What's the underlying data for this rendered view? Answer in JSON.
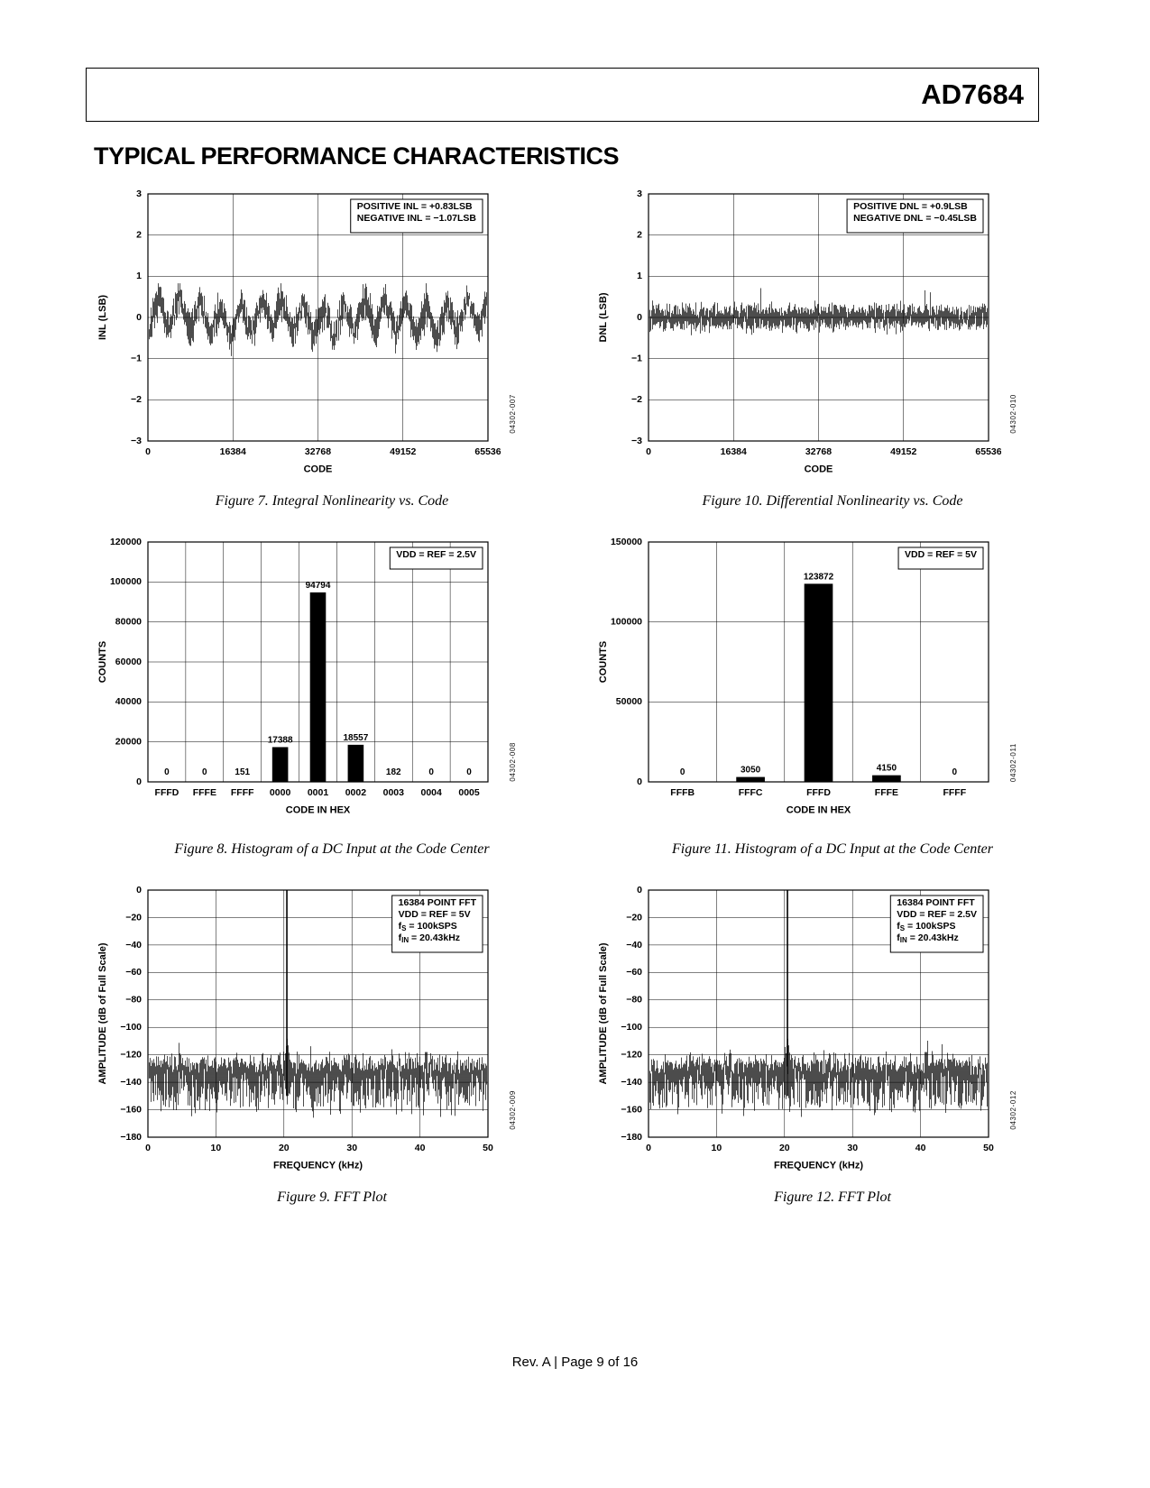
{
  "header": {
    "part_number": "AD7684"
  },
  "section_title": "TYPICAL PERFORMANCE CHARACTERISTICS",
  "footer": {
    "text": "Rev. A | Page 9 of 16"
  },
  "figures": [
    {
      "caption": "Figure 7. Integral Nonlinearity vs. Code",
      "side_label": "04302-007"
    },
    {
      "caption": "Figure 10. Differential Nonlinearity vs. Code",
      "side_label": "04302-010"
    },
    {
      "caption": "Figure 8. Histogram of a DC Input at the Code Center",
      "side_label": "04302-008"
    },
    {
      "caption": "Figure 11. Histogram of a DC Input at the Code Center",
      "side_label": "04302-011"
    },
    {
      "caption": "Figure 9. FFT Plot",
      "side_label": "04302-009"
    },
    {
      "caption": "Figure 12. FFT Plot",
      "side_label": "04302-012"
    }
  ],
  "chart_data": [
    {
      "type": "line",
      "subtype": "inl",
      "xlabel": "CODE",
      "ylabel": "INL (LSB)",
      "xlim": [
        0,
        65536
      ],
      "ylim": [
        -3,
        3
      ],
      "xticks": [
        0,
        16384,
        32768,
        49152,
        65536
      ],
      "yticks": [
        -3,
        -2,
        -1,
        0,
        1,
        2,
        3
      ],
      "annotation": [
        "POSITIVE INL = +0.83LSB",
        "NEGATIVE INL = −1.07LSB"
      ],
      "summary": {
        "positive_inl_lsb": 0.83,
        "negative_inl_lsb": -1.07
      },
      "grid": true,
      "seed": 7
    },
    {
      "type": "line",
      "subtype": "dnl",
      "xlabel": "CODE",
      "ylabel": "DNL (LSB)",
      "xlim": [
        0,
        65536
      ],
      "ylim": [
        -3,
        3
      ],
      "xticks": [
        0,
        16384,
        32768,
        49152,
        65536
      ],
      "yticks": [
        -3,
        -2,
        -1,
        0,
        1,
        2,
        3
      ],
      "annotation": [
        "POSITIVE DNL = +0.9LSB",
        "NEGATIVE DNL = −0.45LSB"
      ],
      "summary": {
        "positive_dnl_lsb": 0.9,
        "negative_dnl_lsb": -0.45
      },
      "grid": true,
      "seed": 10
    },
    {
      "type": "bar",
      "xlabel": "CODE IN HEX",
      "ylabel": "COUNTS",
      "categories": [
        "FFFD",
        "FFFE",
        "FFFF",
        "0000",
        "0001",
        "0002",
        "0003",
        "0004",
        "0005"
      ],
      "values": [
        0,
        0,
        151,
        17388,
        94794,
        18557,
        182,
        0,
        0
      ],
      "ylim": [
        0,
        120000
      ],
      "yticks": [
        0,
        20000,
        40000,
        60000,
        80000,
        100000,
        120000
      ],
      "annotation": [
        "VDD = REF = 2.5V"
      ],
      "grid": true
    },
    {
      "type": "bar",
      "xlabel": "CODE IN HEX",
      "ylabel": "COUNTS",
      "categories": [
        "FFFB",
        "FFFC",
        "FFFD",
        "FFFE",
        "FFFF"
      ],
      "values": [
        0,
        3050,
        123872,
        4150,
        0
      ],
      "ylim": [
        0,
        150000
      ],
      "yticks": [
        0,
        50000,
        100000,
        150000
      ],
      "annotation": [
        "VDD = REF = 5V"
      ],
      "grid": true
    },
    {
      "type": "line",
      "subtype": "fft",
      "xlabel": "FREQUENCY (kHz)",
      "ylabel": "AMPLITUDE (dB of Full Scale)",
      "xlim": [
        0,
        50
      ],
      "ylim": [
        -180,
        0
      ],
      "xticks": [
        0,
        10,
        20,
        30,
        40,
        50
      ],
      "yticks": [
        0,
        -20,
        -40,
        -60,
        -80,
        -100,
        -120,
        -140,
        -160,
        -180
      ],
      "annotation": [
        "16384 POINT FFT",
        "VDD = REF = 5V",
        "f_S_ = 100kSPS",
        "f_IN_ = 20.43kHz"
      ],
      "fundamental_khz": 20.43,
      "noise_floor_db": -132,
      "grid": true,
      "seed": 9
    },
    {
      "type": "line",
      "subtype": "fft",
      "xlabel": "FREQUENCY (kHz)",
      "ylabel": "AMPLITUDE (dB of Full Scale)",
      "xlim": [
        0,
        50
      ],
      "ylim": [
        -180,
        0
      ],
      "xticks": [
        0,
        10,
        20,
        30,
        40,
        50
      ],
      "yticks": [
        0,
        -20,
        -40,
        -60,
        -80,
        -100,
        -120,
        -140,
        -160,
        -180
      ],
      "annotation": [
        "16384 POINT FFT",
        "VDD = REF = 2.5V",
        "f_S_ = 100kSPS",
        "f_IN_ = 20.43kHz"
      ],
      "fundamental_khz": 20.43,
      "noise_floor_db": -132,
      "grid": true,
      "seed": 12
    }
  ]
}
